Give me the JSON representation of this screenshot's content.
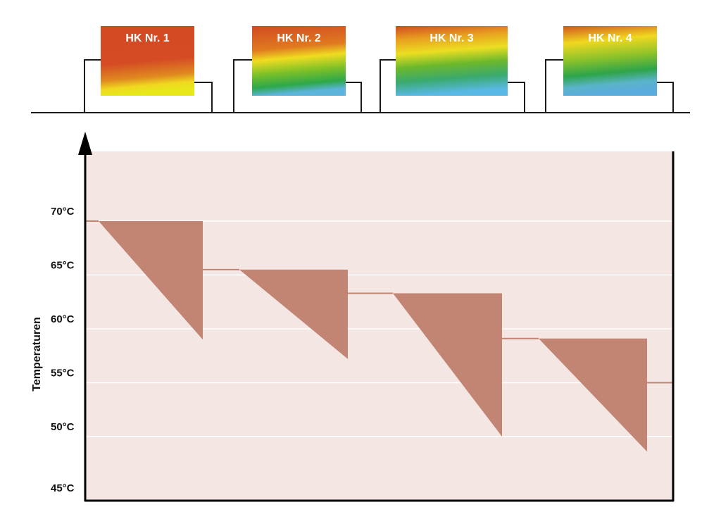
{
  "radiators": [
    {
      "label": "HK Nr. 1",
      "supply_c": 70,
      "return_c": 59,
      "gradient": [
        [
          "0",
          "#d24a22"
        ],
        [
          "0.55",
          "#d54b24"
        ],
        [
          "0.78",
          "#e08a20"
        ],
        [
          "0.9",
          "#f0d820"
        ],
        [
          "1",
          "#e6e81a"
        ]
      ]
    },
    {
      "label": "HK Nr. 2",
      "supply_c": 65.5,
      "return_c": 57.2,
      "gradient": [
        [
          "0",
          "#d24a22"
        ],
        [
          "0.35",
          "#e07a20"
        ],
        [
          "0.5",
          "#f0dc20"
        ],
        [
          "0.7",
          "#7cc028"
        ],
        [
          "0.88",
          "#2ea84a"
        ],
        [
          "1",
          "#5cb4dc"
        ]
      ]
    },
    {
      "label": "HK Nr. 3",
      "supply_c": 63.3,
      "return_c": 50,
      "gradient": [
        [
          "0",
          "#d24a22"
        ],
        [
          "0.2",
          "#e8a020"
        ],
        [
          "0.4",
          "#ecde22"
        ],
        [
          "0.6",
          "#6cb82c"
        ],
        [
          "0.8",
          "#3aaa6e"
        ],
        [
          "1",
          "#5ab8e4"
        ]
      ]
    },
    {
      "label": "HK Nr. 4",
      "supply_c": 59.1,
      "return_c": 48.6,
      "gradient": [
        [
          "0",
          "#d2561e"
        ],
        [
          "0.25",
          "#f0d820"
        ],
        [
          "0.5",
          "#8cc22a"
        ],
        [
          "0.72",
          "#2ea44a"
        ],
        [
          "0.88",
          "#5ab4c8"
        ],
        [
          "1",
          "#5aacdc"
        ]
      ]
    }
  ],
  "final_temp_c": 55,
  "chart_data": {
    "type": "area",
    "ylabel": "Temperaturen",
    "ylim": [
      45,
      72
    ],
    "yticks": [
      "70°C",
      "65°C",
      "60°C",
      "55°C",
      "50°C",
      "45°C"
    ],
    "ytick_values": [
      70,
      65,
      60,
      55,
      50,
      45
    ],
    "grid": true,
    "series": [
      {
        "values": [
          {
            "supply": 70,
            "return": 59
          },
          {
            "supply": 65.5,
            "return": 57.2
          },
          {
            "supply": 63.3,
            "return": 50
          },
          {
            "supply": 59.1,
            "return": 48.6
          }
        ]
      }
    ]
  },
  "colors": {
    "background": "#f4e6e2",
    "drop": "#c28574",
    "pipe": "#1a1a1a",
    "grid": "#ffffff"
  }
}
